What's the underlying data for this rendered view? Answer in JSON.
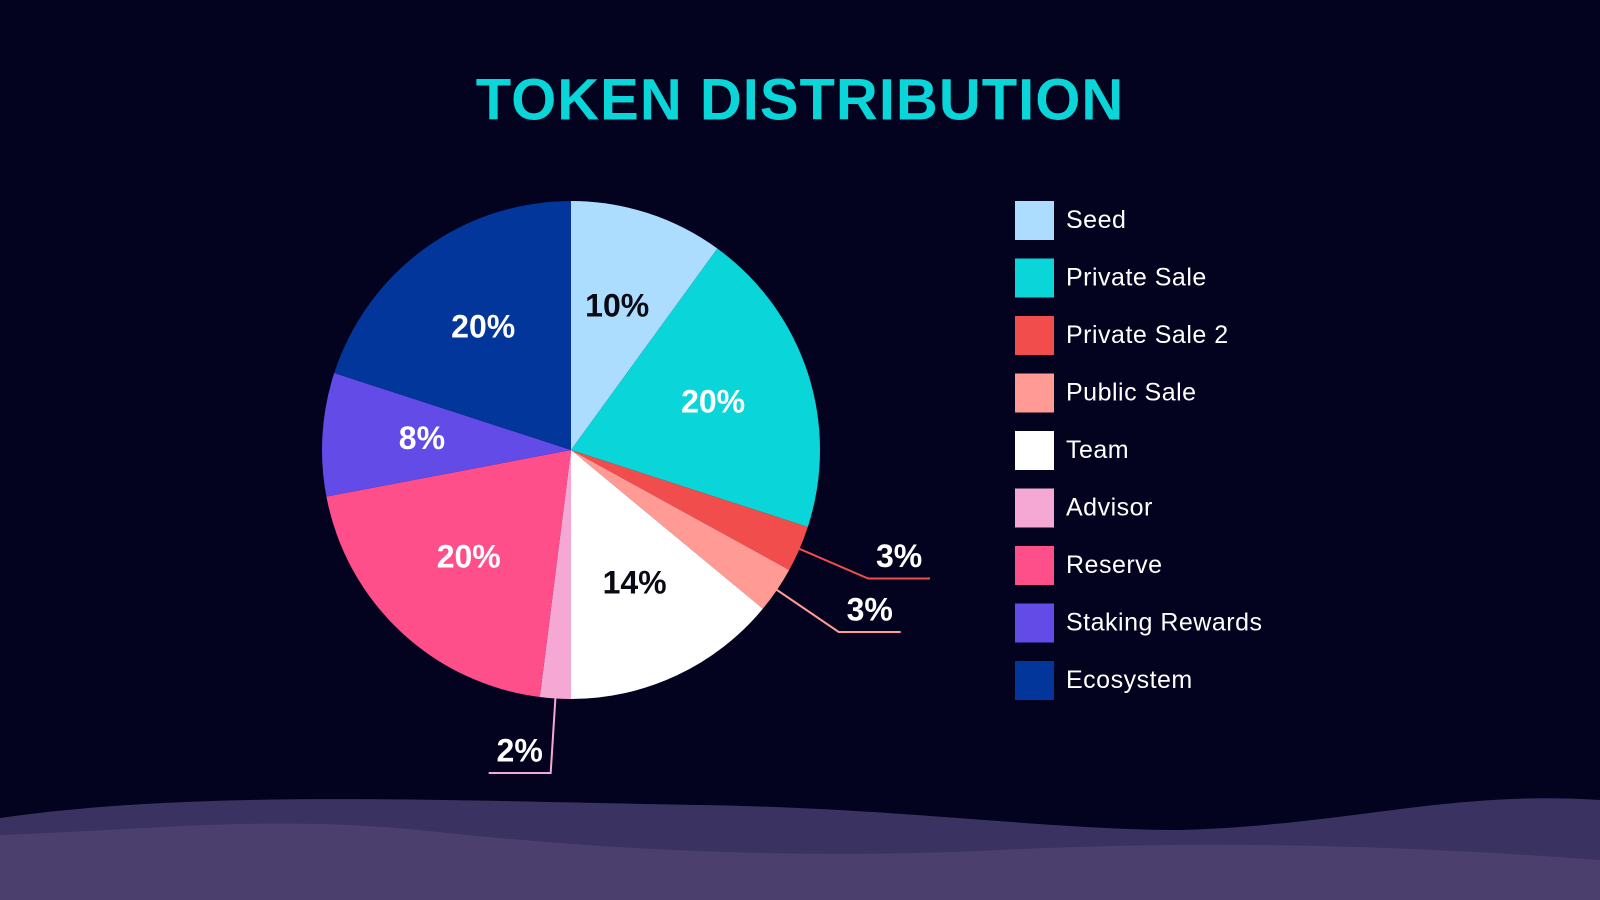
{
  "chart_data": {
    "type": "pie",
    "title": "TOKEN DISTRIBUTION",
    "categories": [
      "Seed",
      "Private Sale",
      "Private Sale 2",
      "Public Sale",
      "Team",
      "Advisor",
      "Reserve",
      "Staking Rewards",
      "Ecosystem"
    ],
    "values": [
      10,
      20,
      3,
      3,
      14,
      2,
      20,
      8,
      20
    ],
    "value_labels": [
      "10%",
      "20%",
      "3%",
      "3%",
      "14%",
      "2%",
      "20%",
      "8%",
      "20%"
    ],
    "colors": [
      "#acdcfe",
      "#0ad5d8",
      "#f24d4d",
      "#ff9a94",
      "#ffffff",
      "#f6a8d4",
      "#ff4f8b",
      "#634be8",
      "#02369a"
    ],
    "legend": "right"
  }
}
